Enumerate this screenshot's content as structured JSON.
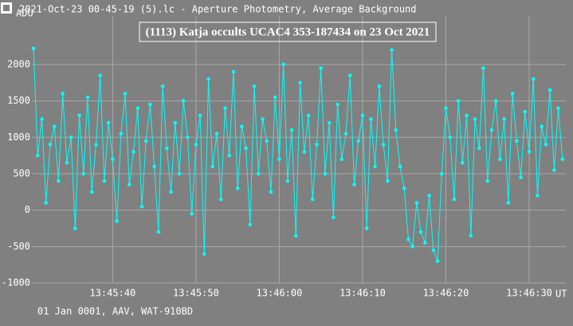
{
  "chart_data": {
    "type": "line",
    "header": "2021-Oct-23 00-45-19 (5).lc - Aperture Photometry, Average Background",
    "title": "(1113) Katja occults UCAC4 353-187434 on 23 Oct 2021",
    "y_label": "ADU",
    "x_label": "UT",
    "footer": "01 Jan 0001, AAV, WAT-910BD",
    "xlim": [
      49530.3,
      49594.4
    ],
    "ylim": [
      -1000,
      2667
    ],
    "xticks": [
      {
        "value": 49540,
        "label": "13:45:40"
      },
      {
        "value": 49550,
        "label": "13:45:50"
      },
      {
        "value": 49560,
        "label": "13:46:00"
      },
      {
        "value": 49570,
        "label": "13:46:10"
      },
      {
        "value": 49580,
        "label": "13:46:20"
      },
      {
        "value": 49590,
        "label": "13:46:30"
      }
    ],
    "yticks": [
      -1000,
      -500,
      0,
      500,
      1000,
      1500,
      2000
    ],
    "grid": true,
    "x": [
      49530.5,
      49531,
      49531.5,
      49532,
      49532.5,
      49533,
      49533.5,
      49534,
      49534.5,
      49535,
      49535.5,
      49536,
      49536.5,
      49537,
      49537.5,
      49538,
      49538.5,
      49539,
      49539.5,
      49540,
      49540.5,
      49541,
      49541.5,
      49542,
      49542.5,
      49543,
      49543.5,
      49544,
      49544.5,
      49545,
      49545.5,
      49546,
      49546.5,
      49547,
      49547.5,
      49548,
      49548.5,
      49549,
      49549.5,
      49550,
      49550.5,
      49551,
      49551.5,
      49552,
      49552.5,
      49553,
      49553.5,
      49554,
      49554.5,
      49555,
      49555.5,
      49556,
      49556.5,
      49557,
      49557.5,
      49558,
      49558.5,
      49559,
      49559.5,
      49560,
      49560.5,
      49561,
      49561.5,
      49562,
      49562.5,
      49563,
      49563.5,
      49564,
      49564.5,
      49565,
      49565.5,
      49566,
      49566.5,
      49567,
      49567.5,
      49568,
      49568.5,
      49569,
      49569.5,
      49570,
      49570.5,
      49571,
      49571.5,
      49572,
      49572.5,
      49573,
      49573.5,
      49574,
      49574.5,
      49575,
      49575.5,
      49576,
      49576.5,
      49577,
      49577.5,
      49578,
      49578.5,
      49579,
      49579.5,
      49580,
      49580.5,
      49581,
      49581.5,
      49582,
      49582.5,
      49583,
      49583.5,
      49584,
      49584.5,
      49585,
      49585.5,
      49586,
      49586.5,
      49587,
      49587.5,
      49588,
      49588.5,
      49589,
      49589.5,
      49590,
      49590.5,
      49591,
      49591.5,
      49592,
      49592.5,
      49593,
      49593.5,
      49594
    ],
    "series": [
      {
        "color": "#00ffff",
        "values": [
          2220,
          750,
          1250,
          100,
          900,
          1150,
          400,
          1600,
          650,
          1000,
          -250,
          1300,
          500,
          1550,
          250,
          900,
          1850,
          400,
          1200,
          700,
          -150,
          1050,
          1600,
          350,
          800,
          1400,
          50,
          950,
          1450,
          600,
          -300,
          1700,
          850,
          250,
          1200,
          500,
          1500,
          1000,
          -50,
          900,
          1300,
          -600,
          1800,
          600,
          1050,
          150,
          1400,
          750,
          1900,
          300,
          1150,
          850,
          -200,
          1700,
          500,
          1250,
          950,
          250,
          1550,
          700,
          2000,
          400,
          1100,
          -350,
          1750,
          800,
          1300,
          150,
          900,
          1950,
          500,
          1200,
          -100,
          1450,
          700,
          1050,
          1850,
          350,
          950,
          1300,
          -250,
          1250,
          600,
          1700,
          900,
          400,
          2200,
          1100,
          600,
          300,
          -400,
          -500,
          100,
          -300,
          -450,
          200,
          -550,
          -700,
          500,
          1400,
          1000,
          150,
          1500,
          650,
          1300,
          -350,
          1250,
          850,
          1950,
          400,
          1100,
          1500,
          700,
          1250,
          100,
          1600,
          950,
          450,
          1350,
          800,
          1800,
          200,
          1150,
          900,
          1650,
          550,
          1400,
          700
        ]
      }
    ]
  }
}
